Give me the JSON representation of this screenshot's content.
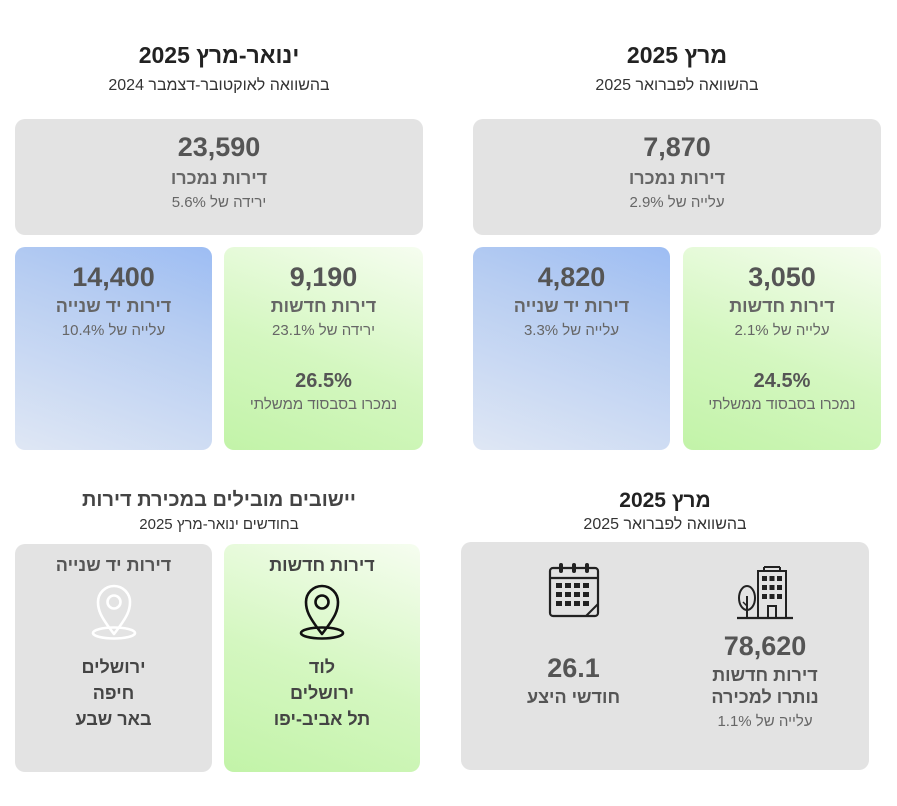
{
  "left_panel": {
    "title": "ינואר-מרץ 2025",
    "subtitle": "בהשוואה לאוקטובר-דצמבר 2024",
    "total": {
      "value": "23,590",
      "label": "דירות נמכרו",
      "change": "ירידה של 5.6%"
    },
    "new": {
      "value": "9,190",
      "label": "דירות חדשות",
      "change": "ירידה של 23.1%",
      "subsidy_pct": "26.5%",
      "subsidy_label": "נמכרו בסבסוד ממשלתי"
    },
    "secondhand": {
      "value": "14,400",
      "label": "דירות יד שנייה",
      "change": "עלייה של 10.4%"
    }
  },
  "right_panel": {
    "title": "מרץ 2025",
    "subtitle": "בהשוואה לפברואר 2025",
    "total": {
      "value": "7,870",
      "label": "דירות נמכרו",
      "change": "עלייה של 2.9%"
    },
    "new": {
      "value": "3,050",
      "label": "דירות חדשות",
      "change": "עלייה של 2.1%",
      "subsidy_pct": "24.5%",
      "subsidy_label": "נמכרו בסבסוד ממשלתי"
    },
    "secondhand": {
      "value": "4,820",
      "label": "דירות יד שנייה",
      "change": "עלייה של 3.3%"
    }
  },
  "leading_cities": {
    "title": "יישובים מובילים במכירת דירות",
    "subtitle": "בחודשים ינואר-מרץ 2025",
    "new": {
      "label": "דירות חדשות",
      "cities": [
        "לוד",
        "ירושלים",
        "תל אביב-יפו"
      ]
    },
    "secondhand": {
      "label": "דירות יד שנייה",
      "cities": [
        "ירושלים",
        "חיפה",
        "באר שבע"
      ]
    }
  },
  "inventory": {
    "title": "מרץ 2025",
    "subtitle": "בהשוואה לפברואר 2025",
    "unsold": {
      "value": "78,620",
      "label_line1": "דירות חדשות",
      "label_line2": "נותרו למכירה",
      "change": "עלייה של 1.1%"
    },
    "supply": {
      "value": "26.1",
      "label": "חודשי היצע"
    }
  },
  "icons": {
    "location_new": "location-pin-icon",
    "location_secondhand": "location-pin-icon",
    "calendar": "calendar-icon",
    "building": "building-icon"
  },
  "colors": {
    "gray_card": "#e3e3e3",
    "green_card": "#c8f5b0",
    "blue_card": "#a7c3f2"
  }
}
